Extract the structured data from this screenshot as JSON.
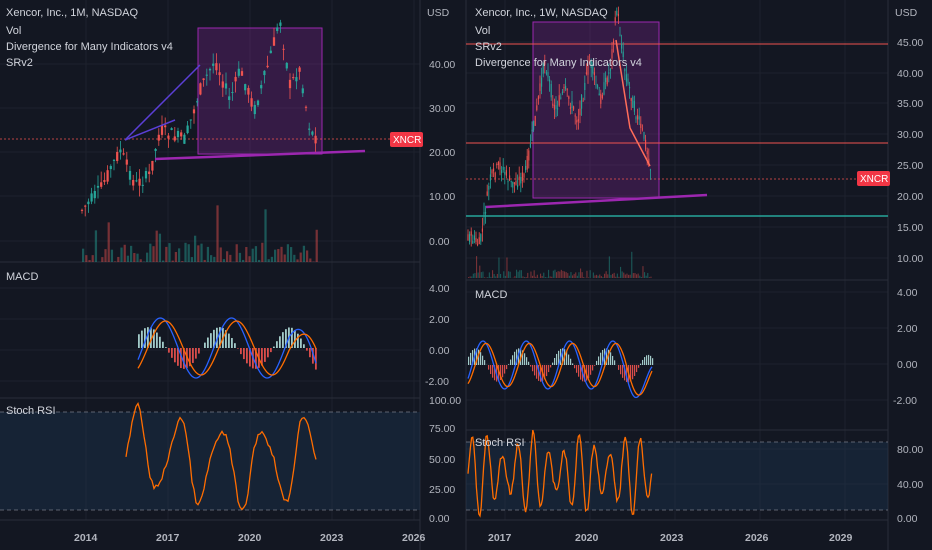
{
  "left_chart": {
    "title": "Xencor, Inc., 1M, NASDAQ",
    "indicators": [
      "Vol",
      "Divergence for Many Indicators v4",
      "SRv2"
    ],
    "currency": "USD",
    "price_ticks": [
      "40.00",
      "30.00",
      "20.00",
      "10.00",
      "0.00"
    ],
    "price_badge": "XNCR",
    "macd_label": "MACD",
    "macd_ticks": [
      "4.00",
      "2.00",
      "0.00",
      "-2.00"
    ],
    "stoch_label": "Stoch RSI",
    "stoch_ticks": [
      "100.00",
      "75.00",
      "50.00",
      "25.00",
      "0.00"
    ],
    "time_ticks": [
      "2014",
      "2017",
      "2020",
      "2023",
      "2026"
    ]
  },
  "right_chart": {
    "title": "Xencor, Inc., 1W, NASDAQ",
    "indicators": [
      "Vol",
      "SRv2",
      "Divergence for Many Indicators v4"
    ],
    "currency": "USD",
    "price_ticks": [
      "45.00",
      "40.00",
      "35.00",
      "30.00",
      "25.00",
      "20.00",
      "15.00",
      "10.00"
    ],
    "price_badge": "XNCR",
    "macd_label": "MACD",
    "macd_ticks": [
      "4.00",
      "2.00",
      "0.00",
      "-2.00"
    ],
    "stoch_label": "Stoch RSI",
    "stoch_ticks": [
      "80.00",
      "40.00",
      "0.00"
    ],
    "time_ticks": [
      "2017",
      "2020",
      "2023",
      "2026",
      "2029"
    ]
  },
  "colors": {
    "background": "#131722",
    "up": "#26a69a",
    "down": "#ef5350",
    "macd_line": "#2962ff",
    "signal_line": "#ff6d00",
    "stoch_line": "#ff6d00",
    "trendline": "#9c27b0",
    "badge": "#f23645"
  }
}
